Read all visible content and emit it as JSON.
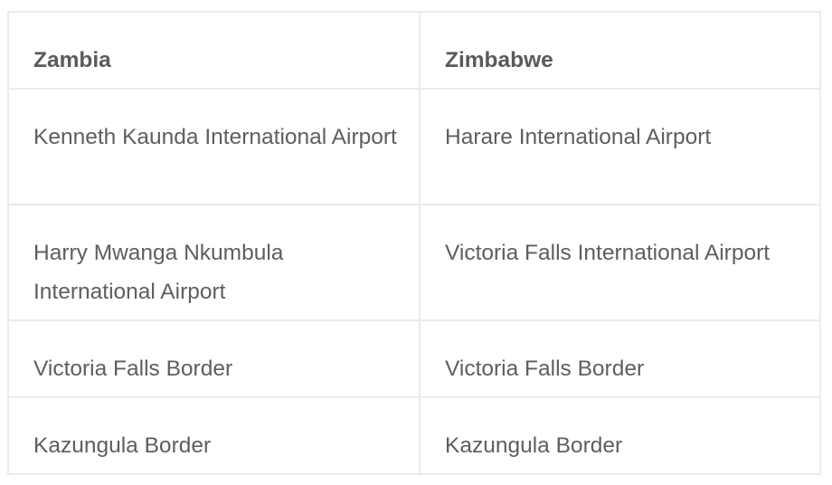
{
  "table": {
    "headers": [
      "Zambia",
      "Zimbabwe"
    ],
    "rows": [
      [
        "Kenneth Kaunda International Airport",
        "Harare International Airport"
      ],
      [
        "Harry Mwanga Nkumbula International Airport",
        "Victoria Falls International Airport"
      ],
      [
        "Victoria Falls Border",
        "Victoria Falls Border"
      ],
      [
        "Kazungula Border",
        "Kazungula Border"
      ]
    ]
  }
}
